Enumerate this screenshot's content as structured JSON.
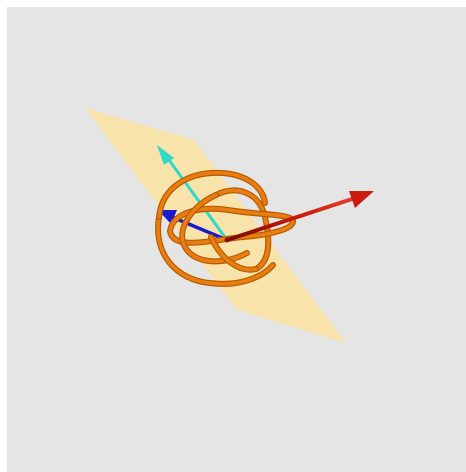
{
  "scene": {
    "description_free": true,
    "background_color": "#e5e5e5",
    "plane_color": "#fbe3a0",
    "curve_color": "#e87d12",
    "curve_highlight_color": "#ffb24a",
    "curve_shadow_color": "#b75a00"
  },
  "vectors": [
    {
      "name": "red-vector",
      "color": "#cc1c10"
    },
    {
      "name": "cyan-vector",
      "color": "#2fd8c8"
    },
    {
      "name": "blue-vector",
      "color": "#1a1acc"
    }
  ],
  "icons": {
    "red-arrowhead": "cone",
    "cyan-arrowhead": "cone",
    "blue-arrowhead": "cone"
  }
}
